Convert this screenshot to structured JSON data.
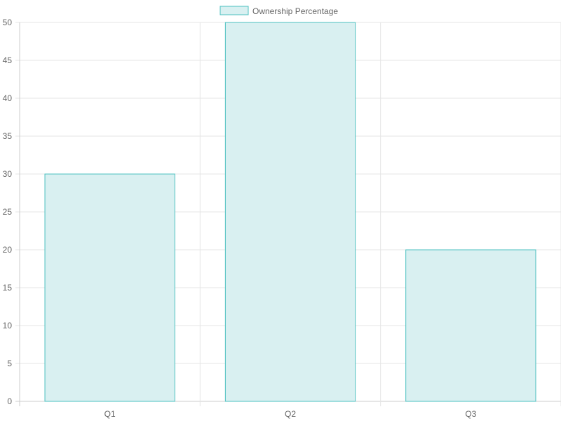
{
  "chart_data": {
    "type": "bar",
    "categories": [
      "Q1",
      "Q2",
      "Q3"
    ],
    "series": [
      {
        "name": "Ownership Percentage",
        "values": [
          30,
          50,
          20
        ],
        "fill": "#d9f0f1",
        "stroke": "#4bc0c0"
      }
    ],
    "title": "",
    "xlabel": "",
    "ylabel": "",
    "ylim": [
      0,
      50
    ],
    "yticks": [
      0,
      5,
      10,
      15,
      20,
      25,
      30,
      35,
      40,
      45,
      50
    ],
    "grid": true,
    "legend_position": "top-center"
  }
}
